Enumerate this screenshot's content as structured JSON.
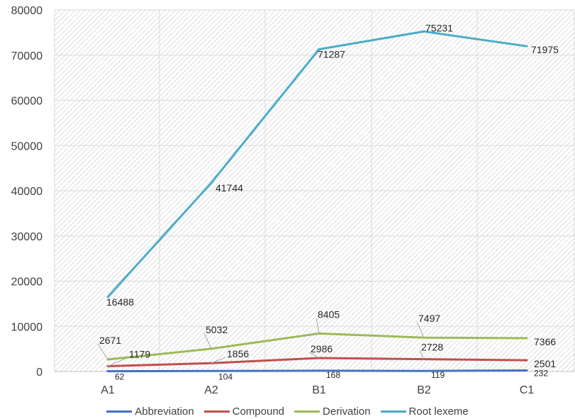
{
  "chart_data": {
    "type": "line",
    "categories": [
      "A1",
      "A2",
      "B1",
      "B2",
      "C1"
    ],
    "ylim": [
      0,
      80000
    ],
    "yticks": [
      "0",
      "10000",
      "20000",
      "30000",
      "40000",
      "50000",
      "60000",
      "70000",
      "80000"
    ],
    "grid": true,
    "legend_position": "bottom",
    "series": [
      {
        "name": "Abbreviation",
        "color": "#4472c4",
        "values": [
          62,
          104,
          168,
          119,
          232
        ],
        "labels": [
          "62",
          "104",
          "168",
          "119",
          "232"
        ]
      },
      {
        "name": "Compound",
        "color": "#c0504d",
        "values": [
          1179,
          1856,
          2986,
          2728,
          2501
        ],
        "labels": [
          "1179",
          "1856",
          "2986",
          "2728",
          "2501"
        ]
      },
      {
        "name": "Derivation",
        "color": "#9bbb59",
        "values": [
          2671,
          5032,
          8405,
          7497,
          7366
        ],
        "labels": [
          "2671",
          "5032",
          "8405",
          "7497",
          "7366"
        ]
      },
      {
        "name": "Root lexeme",
        "color": "#4bacc6",
        "values": [
          16488,
          41744,
          71287,
          75231,
          71975
        ],
        "labels": [
          "16488",
          "41744",
          "71287",
          "75231",
          "71975"
        ]
      }
    ]
  }
}
